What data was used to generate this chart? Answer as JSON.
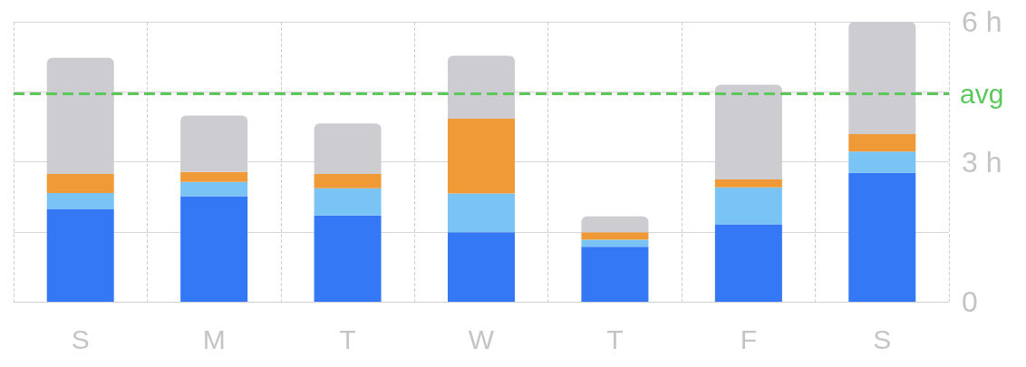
{
  "chart_data": {
    "type": "bar",
    "stacked": true,
    "categories": [
      "S",
      "M",
      "T",
      "W",
      "T",
      "F",
      "S"
    ],
    "series": [
      {
        "color": "#3478f6",
        "values": [
          1.99,
          2.26,
          1.85,
          1.49,
          1.18,
          1.66,
          2.76
        ]
      },
      {
        "color": "#79c3f5",
        "values": [
          0.34,
          0.31,
          0.58,
          0.83,
          0.15,
          0.79,
          0.46
        ]
      },
      {
        "color": "#f09a37",
        "values": [
          0.41,
          0.21,
          0.31,
          1.6,
          0.16,
          0.17,
          0.37
        ]
      },
      {
        "color": "#cdccd0",
        "values": [
          2.49,
          1.21,
          1.08,
          1.35,
          0.34,
          2.03,
          2.41
        ]
      }
    ],
    "ylim": [
      0,
      6
    ],
    "yticks": [
      0,
      {
        "value": 1.5,
        "label": null
      },
      {
        "value": 3,
        "label": "3 h"
      },
      {
        "value": 4.5,
        "label": null
      },
      {
        "value": 6,
        "label": "6 h"
      }
    ],
    "grid": true,
    "ref_lines": [
      {
        "axis": "y",
        "value": 4.46,
        "label": "avg",
        "color": "#5ac85a",
        "line_style": "dashed"
      }
    ]
  }
}
